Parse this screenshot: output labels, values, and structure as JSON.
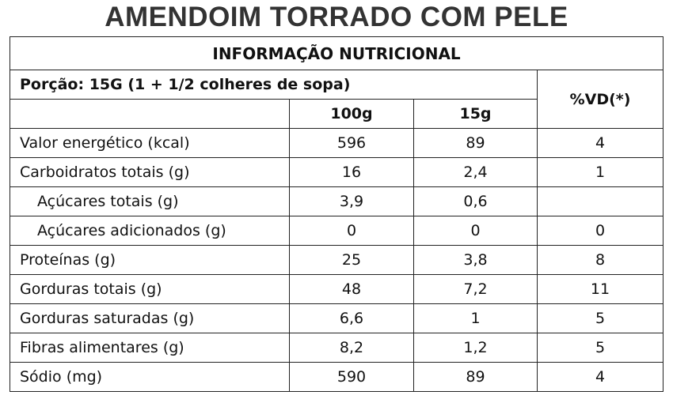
{
  "header": {
    "title": "AMENDOIM TORRADO COM PELE"
  },
  "table": {
    "heading": "INFORMAÇÃO NUTRICIONAL",
    "portion": "Porção: 15G (1 + 1/2 colheres de sopa)",
    "columns": [
      "100g",
      "15g",
      "%VD(*)"
    ],
    "rows": [
      [
        "Valor energético (kcal)",
        "596",
        "89",
        "4"
      ],
      [
        "Carboidratos totais (g)",
        "16",
        "2,4",
        "1"
      ],
      [
        "Açúcares totais (g)",
        "3,9",
        "0,6",
        null
      ],
      [
        "Açúcares adicionados (g)",
        "0",
        "0",
        "0"
      ],
      [
        "Proteínas (g)",
        "25",
        "3,8",
        "8"
      ],
      [
        "Gorduras totais (g)",
        "48",
        "7,2",
        "11"
      ],
      [
        "Gorduras saturadas (g)",
        "6,6",
        "1",
        "5"
      ],
      [
        "Fibras alimentares (g)",
        "8,2",
        "1,2",
        "5"
      ],
      [
        "Sódio (mg)",
        "590",
        "89",
        "4"
      ]
    ]
  }
}
